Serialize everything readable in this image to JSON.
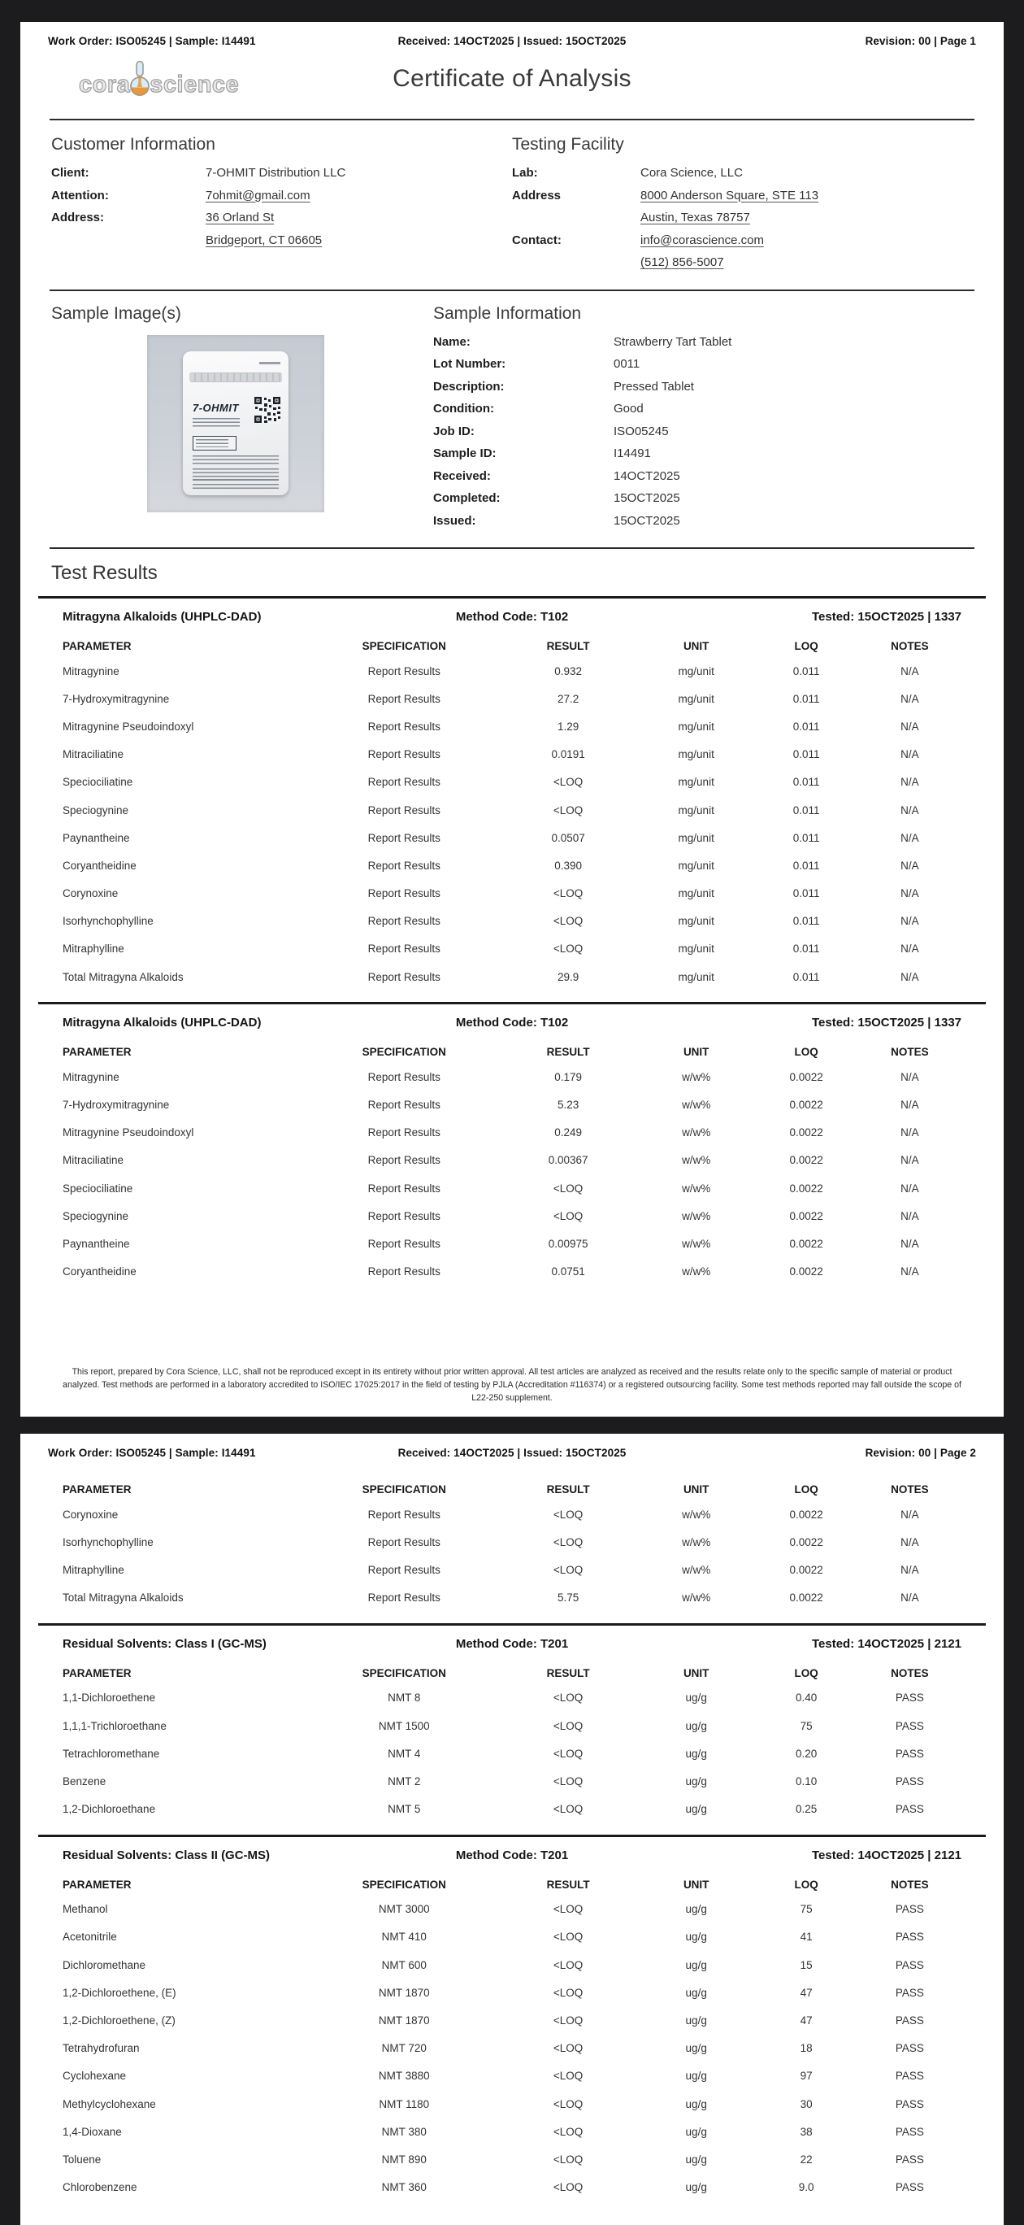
{
  "colors": {
    "canvas_bg": "#1c1c1e",
    "page_bg": "#ffffff",
    "text": "#2f2f2f",
    "flask_liquid_orange": "#e8973a",
    "flask_glass_blue": "#cfe9f5",
    "logo_gray": "#9e9e9e"
  },
  "page1_header": {
    "left": "Work Order: ISO05245 | Sample: I14491",
    "center": "Received: 14OCT2025 | Issued: 15OCT2025",
    "right": "Revision: 00 | Page 1"
  },
  "page2_header": {
    "left": "Work Order: ISO05245 | Sample: I14491",
    "center": "Received: 14OCT2025 | Issued: 15OCT2025",
    "right": "Revision: 00 | Page 2"
  },
  "logo": {
    "word1": "cora",
    "word2": "science"
  },
  "title": "Certificate of Analysis",
  "customer": {
    "heading": "Customer Information",
    "rows": [
      {
        "label": "Client:",
        "value": "7-OHMIT Distribution LLC",
        "u": false
      },
      {
        "label": "Attention:",
        "value": "7ohmit@gmail.com",
        "u": true
      },
      {
        "label": "Address:",
        "value": "36 Orland St",
        "u": true
      },
      {
        "label": "",
        "value": "Bridgeport, CT 06605",
        "u": true
      }
    ]
  },
  "facility": {
    "heading": "Testing Facility",
    "rows": [
      {
        "label": "Lab:",
        "value": "Cora Science, LLC",
        "u": false
      },
      {
        "label": "Address",
        "value": "8000 Anderson Square, STE 113",
        "u": true
      },
      {
        "label": "",
        "value": "Austin, Texas 78757",
        "u": true
      },
      {
        "label": "Contact:",
        "value": "info@corascience.com",
        "u": true
      },
      {
        "label": "",
        "value": "(512) 856-5007",
        "u": true
      }
    ]
  },
  "sample_image": {
    "heading": "Sample Image(s)",
    "pouch_brand": "7-OHMIT"
  },
  "sample_info": {
    "heading": "Sample Information",
    "rows": [
      {
        "label": "Name:",
        "value": "Strawberry Tart Tablet",
        "u": false
      },
      {
        "label": "Lot Number:",
        "value": "0011",
        "u": false
      },
      {
        "label": "Description:",
        "value": "Pressed Tablet",
        "u": false
      },
      {
        "label": "Condition:",
        "value": "Good",
        "u": false
      },
      {
        "label": "Job ID:",
        "value": "ISO05245",
        "u": false
      },
      {
        "label": "Sample ID:",
        "value": "I14491",
        "u": false
      },
      {
        "label": "Received:",
        "value": "14OCT2025",
        "u": false
      },
      {
        "label": "Completed:",
        "value": "15OCT2025",
        "u": false
      },
      {
        "label": "Issued:",
        "value": "15OCT2025",
        "u": false
      }
    ]
  },
  "test_results_heading": "Test Results",
  "columns": [
    "PARAMETER",
    "SPECIFICATION",
    "RESULT",
    "UNIT",
    "LOQ",
    "NOTES"
  ],
  "tables": {
    "alk_mg": {
      "title": "Mitragyna Alkaloids (UHPLC-DAD)",
      "method": "Method Code: T102",
      "tested": "Tested: 15OCT2025 | 1337",
      "show_band": true,
      "show_headers": true,
      "rows": [
        [
          "Mitragynine",
          "Report Results",
          "0.932",
          "mg/unit",
          "0.011",
          "N/A"
        ],
        [
          "7-Hydroxymitragynine",
          "Report Results",
          "27.2",
          "mg/unit",
          "0.011",
          "N/A"
        ],
        [
          "Mitragynine Pseudoindoxyl",
          "Report Results",
          "1.29",
          "mg/unit",
          "0.011",
          "N/A"
        ],
        [
          "Mitraciliatine",
          "Report Results",
          "0.0191",
          "mg/unit",
          "0.011",
          "N/A"
        ],
        [
          "Speciociliatine",
          "Report Results",
          "<LOQ",
          "mg/unit",
          "0.011",
          "N/A"
        ],
        [
          "Speciogynine",
          "Report Results",
          "<LOQ",
          "mg/unit",
          "0.011",
          "N/A"
        ],
        [
          "Paynantheine",
          "Report Results",
          "0.0507",
          "mg/unit",
          "0.011",
          "N/A"
        ],
        [
          "Coryantheidine",
          "Report Results",
          "0.390",
          "mg/unit",
          "0.011",
          "N/A"
        ],
        [
          "Corynoxine",
          "Report Results",
          "<LOQ",
          "mg/unit",
          "0.011",
          "N/A"
        ],
        [
          "Isorhynchophylline",
          "Report Results",
          "<LOQ",
          "mg/unit",
          "0.011",
          "N/A"
        ],
        [
          "Mitraphylline",
          "Report Results",
          "<LOQ",
          "mg/unit",
          "0.011",
          "N/A"
        ],
        [
          "Total Mitragyna Alkaloids",
          "Report Results",
          "29.9",
          "mg/unit",
          "0.011",
          "N/A"
        ]
      ]
    },
    "alk_ww_p1": {
      "title": "Mitragyna Alkaloids (UHPLC-DAD)",
      "method": "Method Code: T102",
      "tested": "Tested: 15OCT2025 | 1337",
      "show_band": true,
      "show_headers": true,
      "rows": [
        [
          "Mitragynine",
          "Report Results",
          "0.179",
          "w/w%",
          "0.0022",
          "N/A"
        ],
        [
          "7-Hydroxymitragynine",
          "Report Results",
          "5.23",
          "w/w%",
          "0.0022",
          "N/A"
        ],
        [
          "Mitragynine Pseudoindoxyl",
          "Report Results",
          "0.249",
          "w/w%",
          "0.0022",
          "N/A"
        ],
        [
          "Mitraciliatine",
          "Report Results",
          "0.00367",
          "w/w%",
          "0.0022",
          "N/A"
        ],
        [
          "Speciociliatine",
          "Report Results",
          "<LOQ",
          "w/w%",
          "0.0022",
          "N/A"
        ],
        [
          "Speciogynine",
          "Report Results",
          "<LOQ",
          "w/w%",
          "0.0022",
          "N/A"
        ],
        [
          "Paynantheine",
          "Report Results",
          "0.00975",
          "w/w%",
          "0.0022",
          "N/A"
        ],
        [
          "Coryantheidine",
          "Report Results",
          "0.0751",
          "w/w%",
          "0.0022",
          "N/A"
        ]
      ]
    },
    "alk_ww_p2": {
      "title": "",
      "method": "",
      "tested": "",
      "show_band": false,
      "show_headers": true,
      "rows": [
        [
          "Corynoxine",
          "Report Results",
          "<LOQ",
          "w/w%",
          "0.0022",
          "N/A"
        ],
        [
          "Isorhynchophylline",
          "Report Results",
          "<LOQ",
          "w/w%",
          "0.0022",
          "N/A"
        ],
        [
          "Mitraphylline",
          "Report Results",
          "<LOQ",
          "w/w%",
          "0.0022",
          "N/A"
        ],
        [
          "Total Mitragyna Alkaloids",
          "Report Results",
          "5.75",
          "w/w%",
          "0.0022",
          "N/A"
        ]
      ]
    },
    "sol1": {
      "title": "Residual Solvents: Class I (GC-MS)",
      "method": "Method Code: T201",
      "tested": "Tested: 14OCT2025 | 2121",
      "show_band": true,
      "show_headers": true,
      "rows": [
        [
          "1,1-Dichloroethene",
          "NMT 8",
          "<LOQ",
          "ug/g",
          "0.40",
          "PASS"
        ],
        [
          "1,1,1-Trichloroethane",
          "NMT 1500",
          "<LOQ",
          "ug/g",
          "75",
          "PASS"
        ],
        [
          "Tetrachloromethane",
          "NMT 4",
          "<LOQ",
          "ug/g",
          "0.20",
          "PASS"
        ],
        [
          "Benzene",
          "NMT 2",
          "<LOQ",
          "ug/g",
          "0.10",
          "PASS"
        ],
        [
          "1,2-Dichloroethane",
          "NMT 5",
          "<LOQ",
          "ug/g",
          "0.25",
          "PASS"
        ]
      ]
    },
    "sol2": {
      "title": "Residual Solvents: Class II (GC-MS)",
      "method": "Method Code: T201",
      "tested": "Tested: 14OCT2025 | 2121",
      "show_band": true,
      "show_headers": true,
      "rows": [
        [
          "Methanol",
          "NMT 3000",
          "<LOQ",
          "ug/g",
          "75",
          "PASS"
        ],
        [
          "Acetonitrile",
          "NMT 410",
          "<LOQ",
          "ug/g",
          "41",
          "PASS"
        ],
        [
          "Dichloromethane",
          "NMT 600",
          "<LOQ",
          "ug/g",
          "15",
          "PASS"
        ],
        [
          "1,2-Dichloroethene, (E)",
          "NMT 1870",
          "<LOQ",
          "ug/g",
          "47",
          "PASS"
        ],
        [
          "1,2-Dichloroethene, (Z)",
          "NMT 1870",
          "<LOQ",
          "ug/g",
          "47",
          "PASS"
        ],
        [
          "Tetrahydrofuran",
          "NMT 720",
          "<LOQ",
          "ug/g",
          "18",
          "PASS"
        ],
        [
          "Cyclohexane",
          "NMT 3880",
          "<LOQ",
          "ug/g",
          "97",
          "PASS"
        ],
        [
          "Methylcyclohexane",
          "NMT 1180",
          "<LOQ",
          "ug/g",
          "30",
          "PASS"
        ],
        [
          "1,4-Dioxane",
          "NMT 380",
          "<LOQ",
          "ug/g",
          "38",
          "PASS"
        ],
        [
          "Toluene",
          "NMT 890",
          "<LOQ",
          "ug/g",
          "22",
          "PASS"
        ],
        [
          "Chlorobenzene",
          "NMT 360",
          "<LOQ",
          "ug/g",
          "9.0",
          "PASS"
        ]
      ]
    }
  },
  "disclaimer": "This report, prepared by Cora Science, LLC, shall not be reproduced except in its entirety without prior written approval. All test articles are analyzed as received and the results relate only to the specific sample of material or product analyzed. Test methods are performed in a laboratory accredited to ISO/IEC 17025:2017 in the field of testing by PJLA (Accreditation #116374) or a registered outsourcing facility. Some test methods reported may fall outside the scope of L22-250 supplement."
}
